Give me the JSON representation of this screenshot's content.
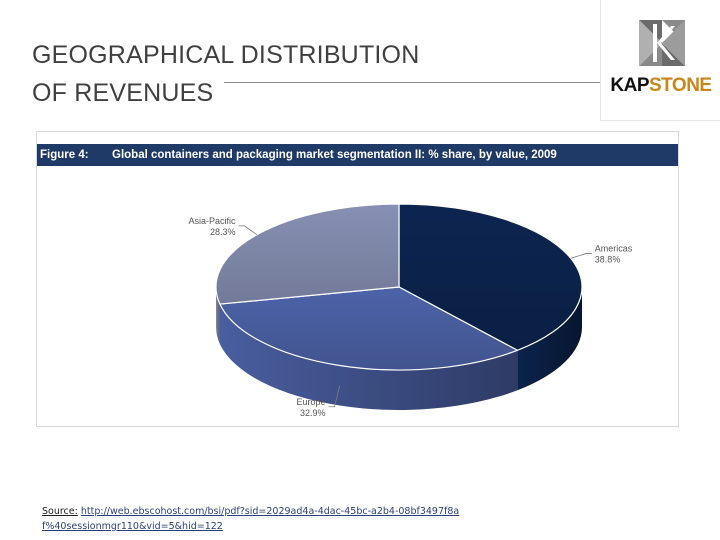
{
  "slide": {
    "title_line1": "GEOGRAPHICAL DISTRIBUTION",
    "title_line2": "OF REVENUES"
  },
  "logo": {
    "part1": "KAP",
    "part2": "STONE",
    "colors": {
      "part1": "#111111",
      "part2": "#c8861a"
    }
  },
  "figure": {
    "number": "Figure 4:",
    "caption": "Global containers and packaging market segmentation II: % share, by value, 2009",
    "header_color": "#1f3a66"
  },
  "chart_data": {
    "type": "pie",
    "style": "3d",
    "unit": "%",
    "slices": [
      {
        "label": "Americas",
        "value": 38.8,
        "value_label": "38.8%",
        "color": "#0c2550"
      },
      {
        "label": "Europe",
        "value": 32.9,
        "value_label": "32.9%",
        "color": "#4d63a8"
      },
      {
        "label": "Asia-Pacific",
        "value": 28.3,
        "value_label": "28.3%",
        "color": "#8790b3"
      }
    ],
    "legend": "none",
    "labels": "outside with leader lines"
  },
  "source": {
    "label": "Source:",
    "url_text": "http://web.ebscohost.com/bsi/pdf?sid=2029ad4a-4dac-45bc-a2b4-08bf3497f8af%40sessionmgr110&vid=5&hid=122"
  }
}
